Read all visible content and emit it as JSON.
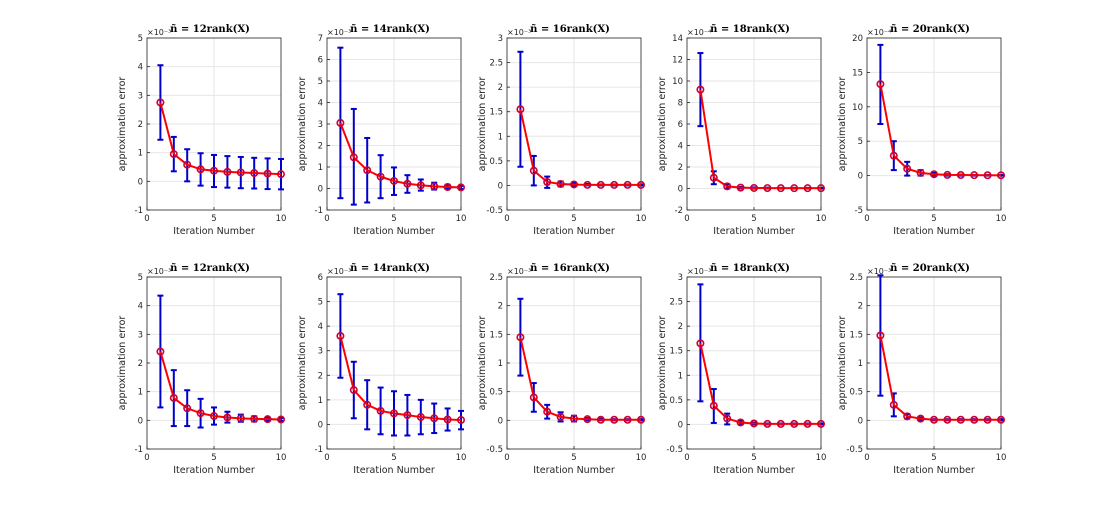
{
  "figure": {
    "xlabel": "Iteration Number",
    "ylabel": "approximation error",
    "series_colors": {
      "line": "#ff0000",
      "marker": "#cc0033",
      "errorbar": "#0000cc"
    }
  },
  "chart_data": [
    {
      "type": "line",
      "panel": "row1-col1",
      "title": "ñ = 12rank(X)",
      "exponent_label": "×10⁻³",
      "xlabel": "Iteration Number",
      "ylabel": "approximation error",
      "xlim": [
        0,
        10
      ],
      "ylim": [
        -1,
        5
      ],
      "xticks": [
        0,
        5,
        10
      ],
      "yticks": [
        -1,
        0,
        1,
        2,
        3,
        4,
        5
      ],
      "x": [
        1,
        2,
        3,
        4,
        5,
        6,
        7,
        8,
        9,
        10
      ],
      "y": [
        2.75,
        0.95,
        0.58,
        0.42,
        0.37,
        0.33,
        0.31,
        0.29,
        0.27,
        0.25
      ],
      "err_low": [
        1.45,
        0.35,
        0.0,
        -0.15,
        -0.2,
        -0.22,
        -0.24,
        -0.25,
        -0.27,
        -0.28
      ],
      "err_high": [
        4.05,
        1.55,
        1.12,
        0.98,
        0.92,
        0.88,
        0.85,
        0.82,
        0.8,
        0.78
      ]
    },
    {
      "type": "line",
      "panel": "row1-col2",
      "title": "ñ = 14rank(X)",
      "exponent_label": "×10⁻³",
      "xlabel": "Iteration Number",
      "ylabel": "approximation error",
      "xlim": [
        0,
        10
      ],
      "ylim": [
        -1,
        7
      ],
      "xticks": [
        0,
        5,
        10
      ],
      "yticks": [
        -1,
        0,
        1,
        2,
        3,
        4,
        5,
        6,
        7
      ],
      "x": [
        1,
        2,
        3,
        4,
        5,
        6,
        7,
        8,
        9,
        10
      ],
      "y": [
        3.05,
        1.45,
        0.85,
        0.55,
        0.35,
        0.22,
        0.15,
        0.1,
        0.07,
        0.05
      ],
      "err_low": [
        -0.45,
        -0.75,
        -0.65,
        -0.45,
        -0.3,
        -0.2,
        -0.1,
        -0.05,
        -0.02,
        -0.02
      ],
      "err_high": [
        6.55,
        3.7,
        2.35,
        1.55,
        0.98,
        0.62,
        0.42,
        0.27,
        0.17,
        0.12
      ]
    },
    {
      "type": "line",
      "panel": "row1-col3",
      "title": "ñ = 16rank(X)",
      "exponent_label": "×10⁻³",
      "xlabel": "Iteration Number",
      "ylabel": "approximation error",
      "xlim": [
        0,
        10
      ],
      "ylim": [
        -0.5,
        3
      ],
      "xticks": [
        0,
        5,
        10
      ],
      "yticks": [
        -0.5,
        0,
        0.5,
        1,
        1.5,
        2,
        2.5,
        3
      ],
      "x": [
        1,
        2,
        3,
        4,
        5,
        6,
        7,
        8,
        9,
        10
      ],
      "y": [
        1.55,
        0.3,
        0.07,
        0.03,
        0.02,
        0.01,
        0.01,
        0.01,
        0.01,
        0.01
      ],
      "err_low": [
        0.38,
        0.0,
        -0.05,
        -0.02,
        -0.01,
        0.0,
        0.0,
        0.0,
        0.0,
        0.0
      ],
      "err_high": [
        2.72,
        0.6,
        0.18,
        0.08,
        0.05,
        0.03,
        0.02,
        0.02,
        0.02,
        0.02
      ]
    },
    {
      "type": "line",
      "panel": "row1-col4",
      "title": "ñ = 18rank(X)",
      "exponent_label": "×10⁻⁴",
      "xlabel": "Iteration Number",
      "ylabel": "approximation error",
      "xlim": [
        0,
        10
      ],
      "ylim": [
        -2,
        14
      ],
      "xticks": [
        0,
        5,
        10
      ],
      "yticks": [
        -2,
        0,
        2,
        4,
        6,
        8,
        10,
        12,
        14
      ],
      "x": [
        1,
        2,
        3,
        4,
        5,
        6,
        7,
        8,
        9,
        10
      ],
      "y": [
        9.2,
        1.0,
        0.2,
        0.08,
        0.05,
        0.04,
        0.03,
        0.03,
        0.03,
        0.03
      ],
      "err_low": [
        5.8,
        0.4,
        0.0,
        0.0,
        0.0,
        0.0,
        0.0,
        0.0,
        0.0,
        0.0
      ],
      "err_high": [
        12.6,
        1.6,
        0.4,
        0.15,
        0.1,
        0.08,
        0.06,
        0.06,
        0.06,
        0.06
      ]
    },
    {
      "type": "line",
      "panel": "row1-col5",
      "title": "ñ = 20rank(X)",
      "exponent_label": "×10⁻⁴",
      "xlabel": "Iteration Number",
      "ylabel": "approximation error",
      "xlim": [
        0,
        10
      ],
      "ylim": [
        -5,
        20
      ],
      "xticks": [
        0,
        5,
        10
      ],
      "yticks": [
        -5,
        0,
        5,
        10,
        15,
        20
      ],
      "x": [
        1,
        2,
        3,
        4,
        5,
        6,
        7,
        8,
        9,
        10
      ],
      "y": [
        13.3,
        2.9,
        1.0,
        0.4,
        0.2,
        0.1,
        0.08,
        0.06,
        0.05,
        0.04
      ],
      "err_low": [
        7.5,
        0.8,
        0.0,
        0.0,
        0.0,
        0.0,
        0.0,
        0.0,
        0.0,
        0.0
      ],
      "err_high": [
        19.0,
        5.0,
        2.0,
        0.8,
        0.4,
        0.2,
        0.15,
        0.1,
        0.1,
        0.08
      ]
    },
    {
      "type": "line",
      "panel": "row2-col1",
      "title": "ñ = 12rank(X)",
      "exponent_label": "×10⁻³",
      "xlabel": "Iteration Number",
      "ylabel": "approximation error",
      "xlim": [
        0,
        10
      ],
      "ylim": [
        -1,
        5
      ],
      "xticks": [
        0,
        5,
        10
      ],
      "yticks": [
        -1,
        0,
        1,
        2,
        3,
        4,
        5
      ],
      "x": [
        1,
        2,
        3,
        4,
        5,
        6,
        7,
        8,
        9,
        10
      ],
      "y": [
        2.4,
        0.78,
        0.42,
        0.25,
        0.15,
        0.1,
        0.07,
        0.05,
        0.04,
        0.03
      ],
      "err_low": [
        0.45,
        -0.2,
        -0.2,
        -0.25,
        -0.15,
        -0.08,
        -0.05,
        -0.04,
        -0.02,
        -0.02
      ],
      "err_high": [
        4.35,
        1.75,
        1.05,
        0.75,
        0.45,
        0.3,
        0.2,
        0.14,
        0.1,
        0.08
      ]
    },
    {
      "type": "line",
      "panel": "row2-col2",
      "title": "ñ = 14rank(X)",
      "exponent_label": "×10⁻³",
      "xlabel": "Iteration Number",
      "ylabel": "approximation error",
      "xlim": [
        0,
        10
      ],
      "ylim": [
        -1,
        6
      ],
      "xticks": [
        0,
        5,
        10
      ],
      "yticks": [
        -1,
        0,
        1,
        2,
        3,
        4,
        5,
        6
      ],
      "x": [
        1,
        2,
        3,
        4,
        5,
        6,
        7,
        8,
        9,
        10
      ],
      "y": [
        3.6,
        1.4,
        0.8,
        0.55,
        0.45,
        0.38,
        0.3,
        0.25,
        0.2,
        0.18
      ],
      "err_low": [
        1.9,
        0.25,
        -0.2,
        -0.4,
        -0.45,
        -0.45,
        -0.4,
        -0.35,
        -0.25,
        -0.2
      ],
      "err_high": [
        5.3,
        2.55,
        1.8,
        1.5,
        1.35,
        1.2,
        1.0,
        0.85,
        0.65,
        0.55
      ]
    },
    {
      "type": "line",
      "panel": "row2-col3",
      "title": "ñ = 16rank(X)",
      "exponent_label": "×10⁻³",
      "xlabel": "Iteration Number",
      "ylabel": "approximation error",
      "xlim": [
        0,
        10
      ],
      "ylim": [
        -0.5,
        2.5
      ],
      "xticks": [
        0,
        5,
        10
      ],
      "yticks": [
        -0.5,
        0,
        0.5,
        1,
        1.5,
        2,
        2.5
      ],
      "x": [
        1,
        2,
        3,
        4,
        5,
        6,
        7,
        8,
        9,
        10
      ],
      "y": [
        1.45,
        0.4,
        0.15,
        0.06,
        0.03,
        0.02,
        0.01,
        0.01,
        0.01,
        0.01
      ],
      "err_low": [
        0.78,
        0.15,
        0.03,
        -0.02,
        -0.02,
        0.0,
        0.0,
        0.0,
        0.0,
        0.0
      ],
      "err_high": [
        2.12,
        0.65,
        0.27,
        0.14,
        0.08,
        0.04,
        0.03,
        0.02,
        0.02,
        0.02
      ]
    },
    {
      "type": "line",
      "panel": "row2-col4",
      "title": "ñ = 18rank(X)",
      "exponent_label": "×10⁻³",
      "xlabel": "Iteration Number",
      "ylabel": "approximation error",
      "xlim": [
        0,
        10
      ],
      "ylim": [
        -0.5,
        3
      ],
      "xticks": [
        0,
        5,
        10
      ],
      "yticks": [
        -0.5,
        0,
        0.5,
        1,
        1.5,
        2,
        2.5,
        3
      ],
      "x": [
        1,
        2,
        3,
        4,
        5,
        6,
        7,
        8,
        9,
        10
      ],
      "y": [
        1.65,
        0.38,
        0.12,
        0.04,
        0.02,
        0.01,
        0.01,
        0.01,
        0.01,
        0.01
      ],
      "err_low": [
        0.47,
        0.03,
        0.0,
        0.0,
        0.0,
        0.0,
        0.0,
        0.0,
        0.0,
        0.0
      ],
      "err_high": [
        2.85,
        0.72,
        0.22,
        0.08,
        0.04,
        0.02,
        0.02,
        0.02,
        0.02,
        0.02
      ]
    },
    {
      "type": "line",
      "panel": "row2-col5",
      "title": "ñ = 20rank(X)",
      "exponent_label": "×10⁻³",
      "xlabel": "Iteration Number",
      "ylabel": "approximation error",
      "xlim": [
        0,
        10
      ],
      "ylim": [
        -0.5,
        2.5
      ],
      "xticks": [
        0,
        5,
        10
      ],
      "yticks": [
        -0.5,
        0,
        0.5,
        1,
        1.5,
        2,
        2.5
      ],
      "x": [
        1,
        2,
        3,
        4,
        5,
        6,
        7,
        8,
        9,
        10
      ],
      "y": [
        1.48,
        0.27,
        0.07,
        0.03,
        0.01,
        0.01,
        0.01,
        0.01,
        0.01,
        0.01
      ],
      "err_low": [
        0.43,
        0.07,
        0.03,
        0.0,
        0.0,
        0.0,
        0.0,
        0.0,
        0.0,
        0.0
      ],
      "err_high": [
        2.53,
        0.47,
        0.11,
        0.05,
        0.02,
        0.02,
        0.02,
        0.02,
        0.02,
        0.02
      ]
    }
  ]
}
